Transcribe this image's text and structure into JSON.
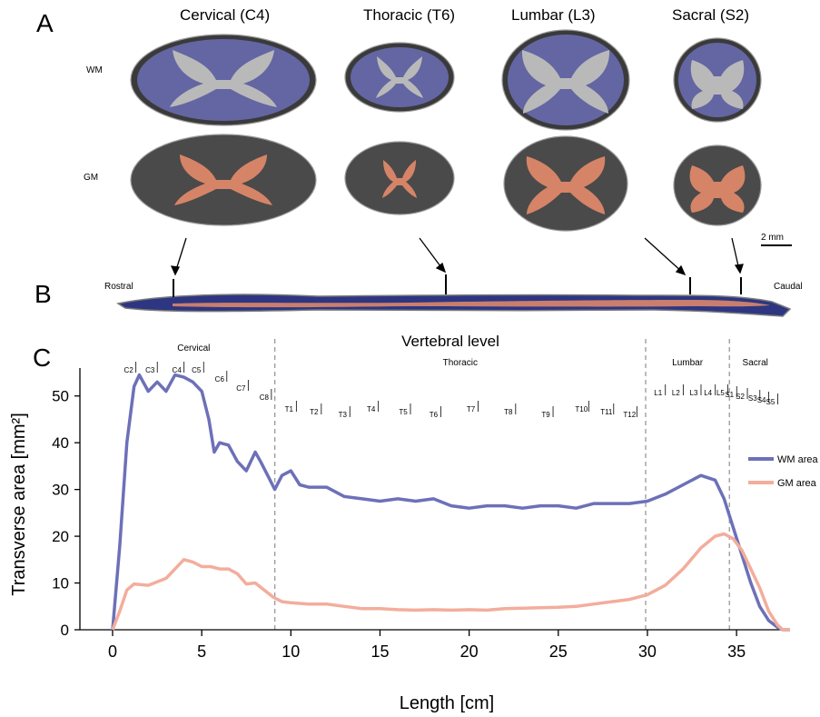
{
  "panels": {
    "A": "A",
    "B": "B",
    "C": "C"
  },
  "panelA": {
    "levels": [
      "Cervical (C4)",
      "Thoracic (T6)",
      "Lumbar (L3)",
      "Sacral (S2)"
    ],
    "row_labels": {
      "wm": "WM",
      "gm": "GM"
    },
    "scalebar": "2 mm"
  },
  "panelB": {
    "rostral": "Rostral",
    "caudal": "Caudal"
  },
  "colors": {
    "wm": "#6d70b8",
    "gm": "#f3ad9c",
    "tissue_wm": "#4b4e9a",
    "tissue_gm": "#e58b6a"
  },
  "chart_data": {
    "type": "line",
    "title": "Vertebral level",
    "xlabel": "Length [cm]",
    "ylabel": "Transverse area [mm²]",
    "xlim": [
      0,
      38
    ],
    "ylim": [
      0,
      55
    ],
    "xticks": [
      0,
      5,
      10,
      15,
      20,
      25,
      30,
      35
    ],
    "yticks": [
      0,
      10,
      20,
      30,
      40,
      50
    ],
    "regions": [
      {
        "name": "Cervical",
        "x_end": 9.1
      },
      {
        "name": "Thoracic",
        "x_end": 29.9
      },
      {
        "name": "Lumbar",
        "x_end": 34.6
      },
      {
        "name": "Sacral"
      }
    ],
    "vertebrae": [
      {
        "label": "C2",
        "x": 0.9
      },
      {
        "label": "C3",
        "x": 2.1
      },
      {
        "label": "C4",
        "x": 3.6
      },
      {
        "label": "C5",
        "x": 4.7
      },
      {
        "label": "C6",
        "x": 6.0
      },
      {
        "label": "C7",
        "x": 7.2
      },
      {
        "label": "C8",
        "x": 8.5
      },
      {
        "label": "T1",
        "x": 9.9
      },
      {
        "label": "T2",
        "x": 11.3
      },
      {
        "label": "T3",
        "x": 12.9
      },
      {
        "label": "T4",
        "x": 14.5
      },
      {
        "label": "T5",
        "x": 16.3
      },
      {
        "label": "T6",
        "x": 18.0
      },
      {
        "label": "T7",
        "x": 20.1
      },
      {
        "label": "T8",
        "x": 22.2
      },
      {
        "label": "T9",
        "x": 24.3
      },
      {
        "label": "T10",
        "x": 26.3
      },
      {
        "label": "T11",
        "x": 27.7
      },
      {
        "label": "T12",
        "x": 29.0
      },
      {
        "label": "L1",
        "x": 30.6
      },
      {
        "label": "L2",
        "x": 31.6
      },
      {
        "label": "L3",
        "x": 32.6
      },
      {
        "label": "L4",
        "x": 33.4
      },
      {
        "label": "L5",
        "x": 34.1
      },
      {
        "label": "S1",
        "x": 34.6
      },
      {
        "label": "S2",
        "x": 35.2
      },
      {
        "label": "S3",
        "x": 35.9
      },
      {
        "label": "S4",
        "x": 36.4
      },
      {
        "label": "S5",
        "x": 36.9
      }
    ],
    "series": [
      {
        "name": "WM area",
        "x": [
          0,
          0.4,
          0.8,
          1.2,
          1.5,
          2.0,
          2.5,
          3.0,
          3.5,
          4.0,
          4.5,
          5.0,
          5.4,
          5.7,
          6.0,
          6.5,
          7.0,
          7.5,
          8.0,
          8.3,
          8.7,
          9.1,
          9.5,
          10.0,
          10.5,
          11.0,
          12.0,
          13.0,
          14.0,
          15.0,
          16.0,
          17.0,
          18.0,
          19.0,
          20.0,
          21.0,
          22.0,
          23.0,
          24.0,
          25.0,
          26.0,
          27.0,
          28.0,
          29.0,
          30.0,
          31.0,
          32.0,
          33.0,
          33.8,
          34.3,
          34.8,
          35.3,
          35.8,
          36.3,
          36.8,
          37.3,
          37.6,
          38.0
        ],
        "values": [
          0,
          18,
          40,
          52,
          54.5,
          51,
          53,
          51,
          54.5,
          54,
          53,
          51,
          45,
          38,
          40,
          39.5,
          36,
          34,
          38,
          36,
          33,
          30,
          33,
          34,
          31,
          30.5,
          30.5,
          28.5,
          28,
          27.5,
          28,
          27.5,
          28,
          26.5,
          26,
          26.5,
          26.5,
          26,
          26.5,
          26.5,
          26,
          27,
          27,
          27,
          27.5,
          29,
          31,
          33,
          32,
          28,
          22,
          16,
          10,
          5,
          2,
          0.5,
          0,
          0
        ]
      },
      {
        "name": "GM area",
        "x": [
          0,
          0.4,
          0.8,
          1.2,
          2.0,
          3.0,
          3.5,
          4.0,
          4.5,
          5.0,
          5.5,
          6.0,
          6.5,
          7.0,
          7.5,
          8.0,
          8.5,
          9.0,
          9.5,
          10.0,
          11.0,
          12.0,
          13.0,
          14.0,
          15.0,
          16.0,
          17.0,
          18.0,
          19.0,
          20.0,
          21.0,
          22.0,
          23.0,
          24.0,
          25.0,
          26.0,
          27.0,
          28.0,
          29.0,
          30.0,
          31.0,
          32.0,
          33.0,
          33.8,
          34.3,
          34.8,
          35.3,
          35.8,
          36.3,
          36.8,
          37.3,
          37.6,
          38.0
        ],
        "values": [
          0,
          4,
          8.5,
          9.8,
          9.5,
          11,
          13,
          15,
          14.5,
          13.5,
          13.5,
          13,
          13,
          12,
          9.8,
          10,
          8.5,
          7,
          6,
          5.8,
          5.5,
          5.5,
          5,
          4.5,
          4.5,
          4.3,
          4.2,
          4.3,
          4.2,
          4.3,
          4.2,
          4.5,
          4.6,
          4.7,
          4.8,
          5,
          5.5,
          6,
          6.5,
          7.5,
          9.5,
          13,
          17.5,
          20,
          20.5,
          19.5,
          17,
          13,
          9,
          4,
          1,
          0,
          0
        ]
      }
    ]
  }
}
